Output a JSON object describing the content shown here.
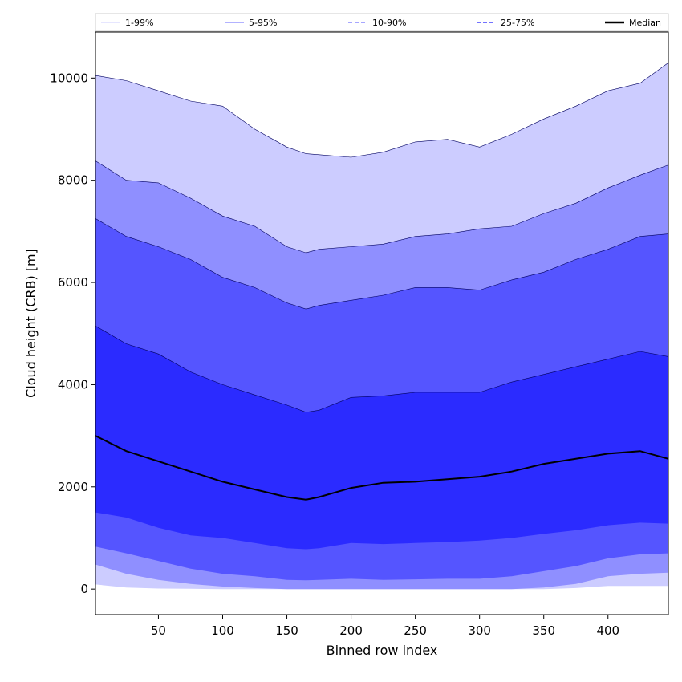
{
  "chart_data": {
    "type": "area",
    "title": "",
    "xlabel": "Binned row index",
    "ylabel": "Cloud height (CRB) [m]",
    "xlim": [
      1,
      447
    ],
    "ylim": [
      -500,
      10900
    ],
    "x_ticks": [
      50,
      100,
      150,
      200,
      250,
      300,
      350,
      400
    ],
    "y_ticks": [
      0,
      2000,
      4000,
      6000,
      8000,
      10000
    ],
    "grid": false,
    "legend_position": "top, spanning full width",
    "x": [
      1,
      25,
      50,
      75,
      100,
      125,
      150,
      165,
      175,
      200,
      225,
      250,
      275,
      300,
      325,
      350,
      375,
      400,
      425,
      447
    ],
    "bands": [
      {
        "name": "1-99%",
        "fill_color": "#ccccff",
        "line_color": "#0000ff",
        "lower": [
          90,
          30,
          10,
          5,
          0,
          0,
          0,
          0,
          0,
          0,
          0,
          0,
          0,
          0,
          0,
          0,
          20,
          60,
          60,
          60
        ],
        "upper": [
          10050,
          9950,
          9750,
          9550,
          9450,
          9000,
          8650,
          8520,
          8500,
          8450,
          8550,
          8750,
          8800,
          8650,
          8900,
          9200,
          9450,
          9750,
          9900,
          10300
        ]
      },
      {
        "name": "5-95%",
        "fill_color": "#8f8fff",
        "line_color": "#0000ff",
        "lower": [
          480,
          300,
          180,
          100,
          50,
          20,
          0,
          0,
          0,
          0,
          0,
          0,
          0,
          0,
          0,
          30,
          100,
          250,
          300,
          320
        ],
        "upper": [
          8380,
          8000,
          7950,
          7650,
          7300,
          7100,
          6700,
          6580,
          6650,
          6700,
          6750,
          6900,
          6950,
          7050,
          7100,
          7350,
          7550,
          7850,
          8100,
          8300
        ]
      },
      {
        "name": "10-90%",
        "fill_color": "#5555ff",
        "line_color": "#0000ff",
        "lower": [
          830,
          700,
          550,
          400,
          300,
          250,
          180,
          170,
          180,
          200,
          180,
          190,
          200,
          200,
          250,
          350,
          450,
          600,
          680,
          700
        ],
        "upper": [
          7250,
          6900,
          6700,
          6450,
          6100,
          5900,
          5600,
          5480,
          5550,
          5650,
          5750,
          5900,
          5900,
          5850,
          6050,
          6200,
          6450,
          6650,
          6900,
          6950
        ]
      },
      {
        "name": "25-75%",
        "fill_color": "#2b2bff",
        "line_color": "#0000ff",
        "lower": [
          1500,
          1400,
          1200,
          1050,
          1000,
          900,
          800,
          780,
          800,
          900,
          880,
          900,
          920,
          950,
          1000,
          1080,
          1150,
          1250,
          1300,
          1280
        ],
        "upper": [
          5150,
          4800,
          4600,
          4250,
          4000,
          3800,
          3600,
          3460,
          3500,
          3750,
          3780,
          3850,
          3850,
          3850,
          4050,
          4200,
          4350,
          4500,
          4650,
          4550
        ]
      }
    ],
    "median": {
      "name": "Median",
      "color": "#000000",
      "values": [
        3000,
        2700,
        2500,
        2300,
        2100,
        1950,
        1800,
        1750,
        1800,
        1980,
        2080,
        2100,
        2150,
        2200,
        2300,
        2450,
        2550,
        2650,
        2700,
        2550
      ]
    },
    "legend": [
      {
        "label": "1-99%",
        "style": "thin",
        "color": "#ccccff"
      },
      {
        "label": "5-95%",
        "style": "thin",
        "color": "#8f8fff"
      },
      {
        "label": "10-90%",
        "style": "dashed",
        "color": "#5555ff"
      },
      {
        "label": "25-75%",
        "style": "dashed",
        "color": "#2b2bff"
      },
      {
        "label": "Median",
        "style": "solid-thick",
        "color": "#000000"
      }
    ]
  }
}
